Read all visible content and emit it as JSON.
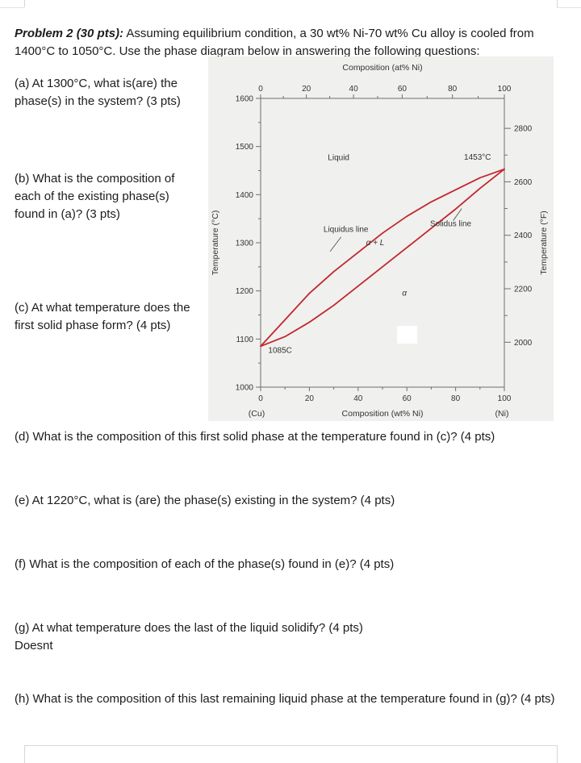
{
  "page": {
    "intro_label": "Problem 2 (30 pts):",
    "intro_text_1": " Assuming equilibrium condition, a 30 wt% Ni-70 wt% Cu alloy is cooled from",
    "intro_text_2": "1400°C to 1050°C. Use the phase diagram below in answering the following questions:",
    "questions": {
      "a": "(a) At 1300°C, what is(are) the phase(s) in the system? (3 pts)",
      "b": "(b) What is the composition of each of the existing phase(s) found in (a)? (3 pts)",
      "c": "(c) At what temperature does the first solid phase form? (4 pts)",
      "d": "(d) What is the composition of this first solid phase at the temperature found in (c)? (4 pts)",
      "e": "(e) At 1220°C, what is (are) the phase(s) existing in the system? (4 pts)",
      "f": "(f) What is the composition of each of the phase(s) found in (e)? (4 pts)",
      "g": "(g) At what temperature does the last of the liquid solidify? (4 pts)",
      "g_answer": "Doesnt",
      "h": "(h) What is the composition of this last remaining liquid phase at the temperature found in (g)? (4 pts)"
    }
  },
  "chart_data": {
    "type": "line",
    "description": "Cu-Ni binary isomorphous phase diagram",
    "x": [
      0,
      10,
      20,
      30,
      40,
      50,
      60,
      70,
      80,
      90,
      100
    ],
    "series": [
      {
        "name": "Liquidus",
        "values": [
          1085,
          1140,
          1195,
          1240,
          1280,
          1320,
          1355,
          1385,
          1410,
          1435,
          1453
        ]
      },
      {
        "name": "Solidus",
        "values": [
          1085,
          1105,
          1135,
          1170,
          1210,
          1250,
          1290,
          1330,
          1370,
          1413,
          1453
        ]
      }
    ],
    "xlabel_top": "Composition (at% Ni)",
    "xlabel_bottom": "Composition (wt% Ni)",
    "ylabel_left": "Temperature (°C)",
    "ylabel_right": "Temperature (°F)",
    "xlim": [
      0,
      100
    ],
    "ylim_c": [
      1000,
      1600
    ],
    "x_ticks": [
      0,
      20,
      40,
      60,
      80,
      100
    ],
    "x_minor_step": 10,
    "y_ticks_c": [
      1000,
      1100,
      1200,
      1300,
      1400,
      1500,
      1600
    ],
    "y_ticks_f": [
      2000,
      2200,
      2400,
      2600,
      2800
    ],
    "end_labels": {
      "left": "(Cu)",
      "right": "(Ni)"
    },
    "line_color": "#c1272d",
    "annotations": [
      {
        "text": "Liquid",
        "x": 32,
        "t": 1472,
        "style": "plain"
      },
      {
        "text": "1453°C",
        "x": 89,
        "t": 1473,
        "style": "plain"
      },
      {
        "text": "Liquidus line",
        "x": 35,
        "t": 1323,
        "style": "plain"
      },
      {
        "text": "Solidus line",
        "x": 78,
        "t": 1334,
        "style": "plain"
      },
      {
        "text": "α + L",
        "x": 47,
        "t": 1295,
        "style": "italic"
      },
      {
        "text": "α",
        "x": 59,
        "t": 1190,
        "style": "italic"
      },
      {
        "text": "1085C",
        "x": 8,
        "t": 1071,
        "style": "plain"
      }
    ],
    "leaders": [
      {
        "x1": 33,
        "t1": 1312,
        "x2": 28.5,
        "t2": 1282
      },
      {
        "x1": 79,
        "t1": 1346,
        "x2": 82.5,
        "t2": 1371
      }
    ]
  }
}
